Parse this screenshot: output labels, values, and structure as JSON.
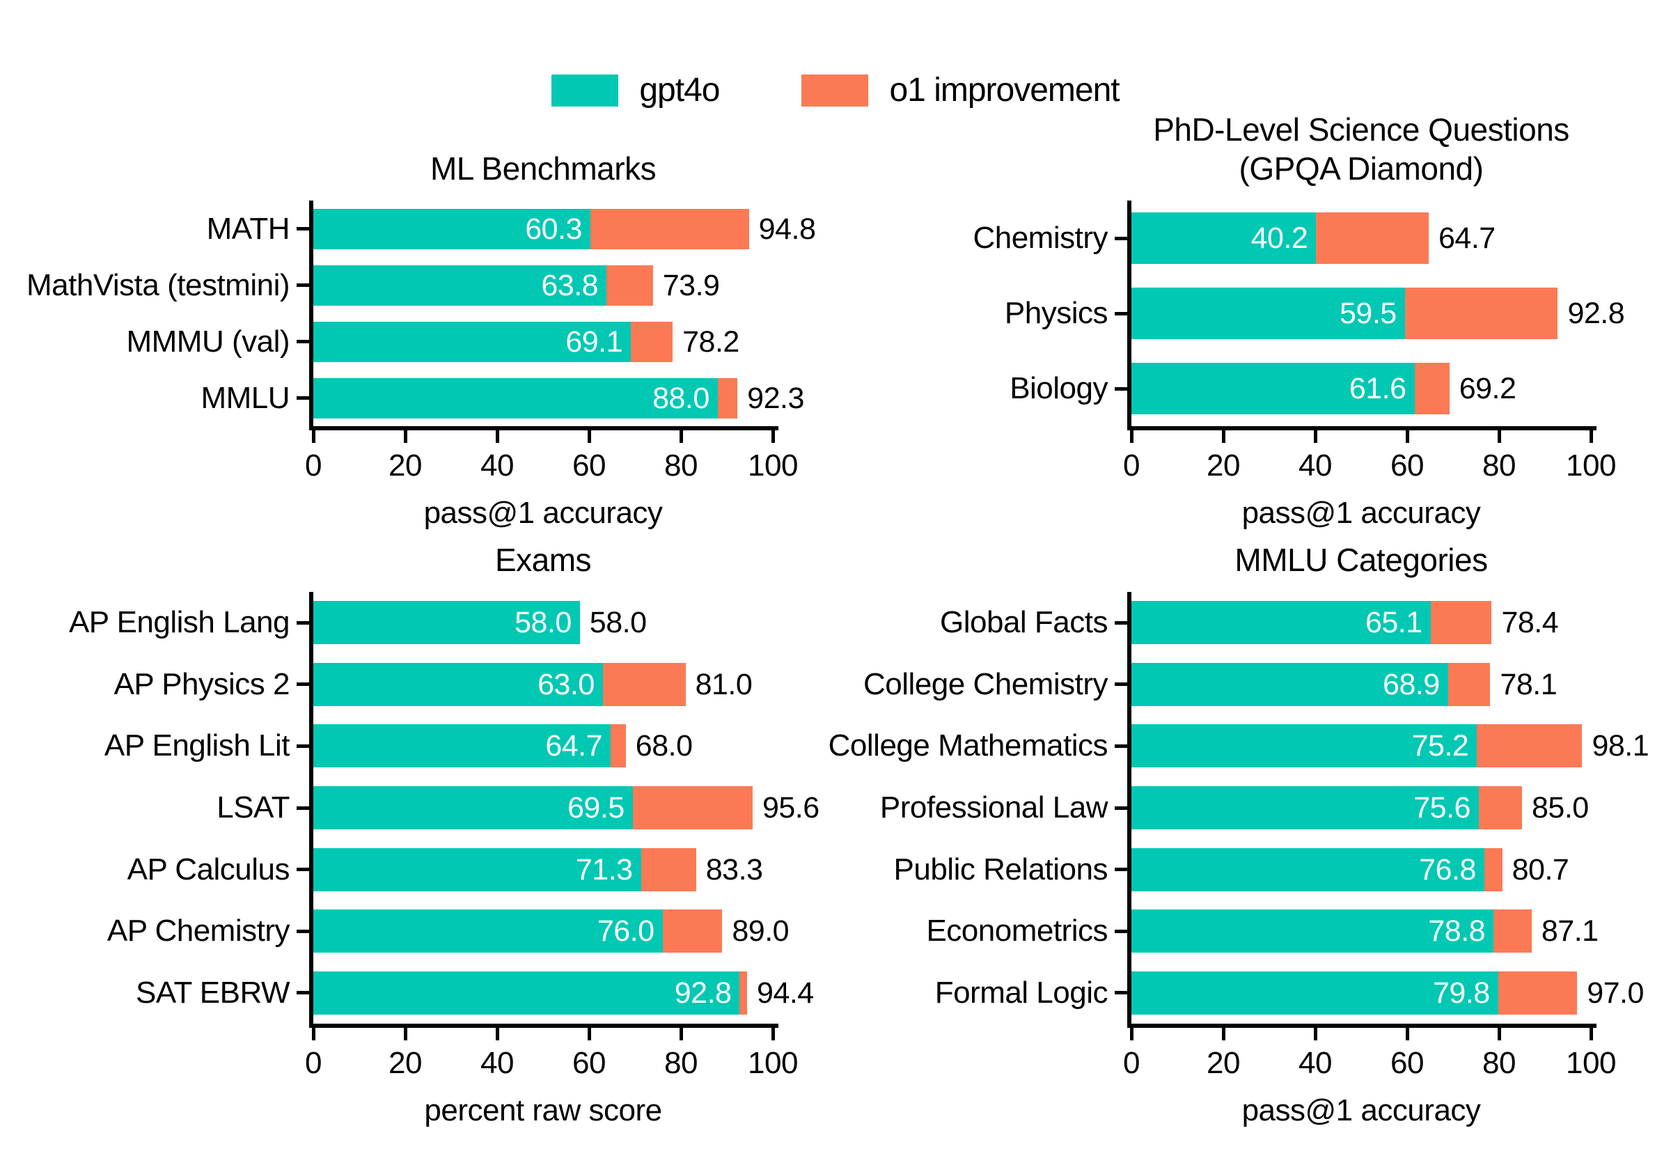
{
  "legend": {
    "items": [
      {
        "label": "gpt4o",
        "color": "#00C8B3"
      },
      {
        "label": "o1 improvement",
        "color": "#FB7A55"
      }
    ]
  },
  "colors": {
    "gpt4o": "#00C8B3",
    "o1_improvement": "#FB7A55",
    "axis": "#000000",
    "value_label_inside": "#FFFFFF",
    "value_label_outside": "#000000"
  },
  "chart_data": [
    {
      "type": "bar",
      "orientation": "horizontal",
      "title": "ML Benchmarks",
      "xlabel": "pass@1 accuracy",
      "xlim": [
        0,
        100
      ],
      "xticks": [
        0,
        20,
        40,
        60,
        80,
        100
      ],
      "grid": false,
      "categories": [
        "MATH",
        "MathVista (testmini)",
        "MMMU (val)",
        "MMLU"
      ],
      "series": [
        {
          "name": "gpt4o",
          "values": [
            60.3,
            63.8,
            69.1,
            88.0
          ]
        },
        {
          "name": "o1",
          "values": [
            94.8,
            73.9,
            78.2,
            92.3
          ]
        }
      ]
    },
    {
      "type": "bar",
      "orientation": "horizontal",
      "title": "PhD-Level Science Questions\n(GPQA Diamond)",
      "xlabel": "pass@1 accuracy",
      "xlim": [
        0,
        100
      ],
      "xticks": [
        0,
        20,
        40,
        60,
        80,
        100
      ],
      "grid": false,
      "categories": [
        "Chemistry",
        "Physics",
        "Biology"
      ],
      "series": [
        {
          "name": "gpt4o",
          "values": [
            40.2,
            59.5,
            61.6
          ]
        },
        {
          "name": "o1",
          "values": [
            64.7,
            92.8,
            69.2
          ]
        }
      ]
    },
    {
      "type": "bar",
      "orientation": "horizontal",
      "title": "Exams",
      "xlabel": "percent raw score",
      "xlim": [
        0,
        100
      ],
      "xticks": [
        0,
        20,
        40,
        60,
        80,
        100
      ],
      "grid": false,
      "categories": [
        "AP English Lang",
        "AP Physics 2",
        "AP English Lit",
        "LSAT",
        "AP Calculus",
        "AP Chemistry",
        "SAT EBRW"
      ],
      "series": [
        {
          "name": "gpt4o",
          "values": [
            58.0,
            63.0,
            64.7,
            69.5,
            71.3,
            76.0,
            92.8
          ]
        },
        {
          "name": "o1",
          "values": [
            58.0,
            81.0,
            68.0,
            95.6,
            83.3,
            89.0,
            94.4
          ]
        }
      ]
    },
    {
      "type": "bar",
      "orientation": "horizontal",
      "title": "MMLU Categories",
      "xlabel": "pass@1 accuracy",
      "xlim": [
        0,
        100
      ],
      "xticks": [
        0,
        20,
        40,
        60,
        80,
        100
      ],
      "grid": false,
      "categories": [
        "Global Facts",
        "College Chemistry",
        "College Mathematics",
        "Professional Law",
        "Public Relations",
        "Econometrics",
        "Formal Logic"
      ],
      "series": [
        {
          "name": "gpt4o",
          "values": [
            65.1,
            68.9,
            75.2,
            75.6,
            76.8,
            78.8,
            79.8
          ]
        },
        {
          "name": "o1",
          "values": [
            78.4,
            78.1,
            98.1,
            85.0,
            80.7,
            87.1,
            97.0
          ]
        }
      ]
    }
  ]
}
